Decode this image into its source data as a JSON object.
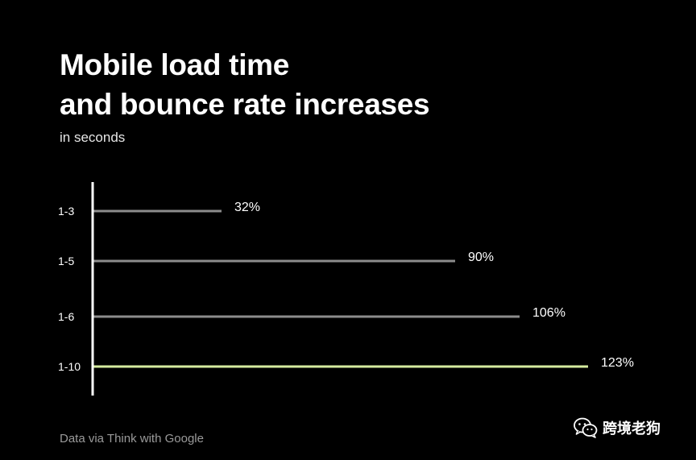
{
  "chart_data": {
    "type": "bar",
    "orientation": "horizontal",
    "title_line1": "Mobile load time",
    "title_line2": "and bounce rate increases",
    "subtitle": "in seconds",
    "categories": [
      "1-3",
      "1-5",
      "1-6",
      "1-10"
    ],
    "values": [
      32,
      90,
      106,
      123
    ],
    "value_labels": [
      "32%",
      "90%",
      "106%",
      "123%"
    ],
    "xlim": [
      0,
      123
    ],
    "highlight_index": 3,
    "colors": {
      "bar": "#8c8c8c",
      "highlight": "#d6eb9f",
      "axis": "#ffffff",
      "text": "#ffffff",
      "muted": "#9a9a9a"
    }
  },
  "source": "Data via Think with Google",
  "watermark": {
    "icon": "wechat-icon",
    "text": "跨境老狗"
  }
}
